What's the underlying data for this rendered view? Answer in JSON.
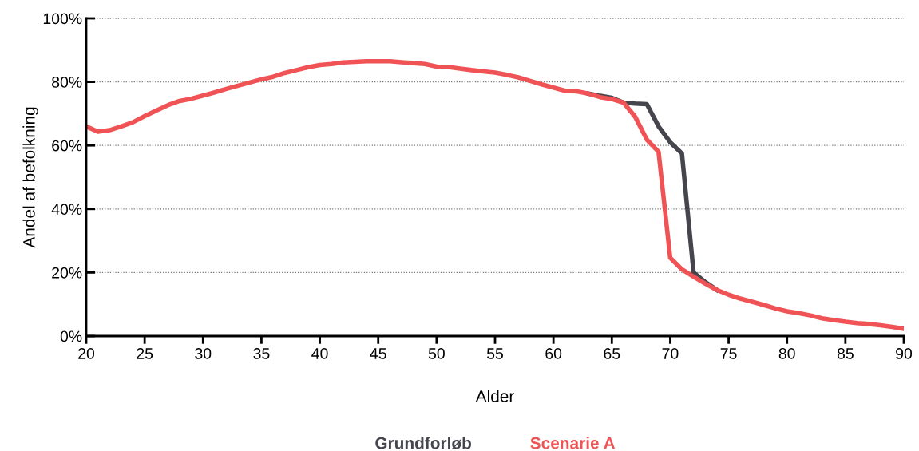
{
  "chart_data": {
    "type": "line",
    "xlabel": "Alder",
    "ylabel": "Andel af befolkning",
    "x": [
      20,
      21,
      22,
      23,
      24,
      25,
      26,
      27,
      28,
      29,
      30,
      31,
      32,
      33,
      34,
      35,
      36,
      37,
      38,
      39,
      40,
      41,
      42,
      43,
      44,
      45,
      46,
      47,
      48,
      49,
      50,
      51,
      52,
      53,
      54,
      55,
      56,
      57,
      58,
      59,
      60,
      61,
      62,
      63,
      64,
      65,
      66,
      67,
      68,
      69,
      70,
      71,
      72,
      73,
      74,
      75,
      76,
      77,
      78,
      79,
      80,
      81,
      82,
      83,
      84,
      85,
      86,
      87,
      88,
      89,
      90
    ],
    "series": [
      {
        "name": "Grundforløb",
        "color": "#45454d",
        "values": [
          null,
          null,
          null,
          null,
          null,
          null,
          null,
          null,
          null,
          null,
          null,
          null,
          null,
          null,
          null,
          null,
          null,
          null,
          null,
          null,
          null,
          null,
          null,
          null,
          null,
          null,
          null,
          null,
          null,
          null,
          null,
          null,
          null,
          null,
          null,
          null,
          null,
          null,
          null,
          null,
          null,
          null,
          null,
          76.3,
          75.6,
          75.0,
          73.5,
          73.2,
          73.0,
          66,
          61,
          57.5,
          20,
          17,
          14.5,
          null,
          null,
          null,
          null,
          null,
          null,
          null,
          null,
          null,
          null,
          null,
          null,
          null,
          null,
          null,
          null
        ]
      },
      {
        "name": "Scenarie A",
        "color": "#f05355",
        "values": [
          66,
          64.3,
          64.8,
          66,
          67.3,
          69.2,
          71,
          72.7,
          74,
          74.7,
          75.7,
          76.7,
          77.8,
          78.8,
          79.8,
          80.8,
          81.6,
          82.8,
          83.7,
          84.6,
          85.3,
          85.6,
          86.1,
          86.3,
          86.5,
          86.5,
          86.5,
          86.2,
          85.9,
          85.6,
          84.8,
          84.7,
          84.2,
          83.7,
          83.3,
          82.9,
          82.2,
          81.4,
          80.3,
          79.2,
          78.2,
          77.2,
          77.0,
          76.3,
          75.2,
          74.6,
          73.5,
          69,
          61.8,
          58,
          24.6,
          21,
          18.7,
          16.5,
          14.5,
          13,
          11.8,
          10.8,
          9.8,
          8.7,
          7.8,
          7.2,
          6.5,
          5.6,
          5,
          4.5,
          4.1,
          3.8,
          3.4,
          2.9,
          2.3
        ]
      }
    ],
    "xlim": [
      20,
      90
    ],
    "xticks": [
      20,
      25,
      30,
      35,
      40,
      45,
      50,
      55,
      60,
      65,
      70,
      75,
      80,
      85,
      90
    ],
    "ylim": [
      0,
      100
    ],
    "yticks": [
      {
        "value": 0,
        "label": "0%"
      },
      {
        "value": 20,
        "label": "20%"
      },
      {
        "value": 40,
        "label": "40%"
      },
      {
        "value": 60,
        "label": "60%"
      },
      {
        "value": 80,
        "label": "80%"
      },
      {
        "value": 100,
        "label": "100%"
      }
    ],
    "grid": "y",
    "legend": "bottom",
    "marker": "none",
    "line_style": "solid"
  }
}
